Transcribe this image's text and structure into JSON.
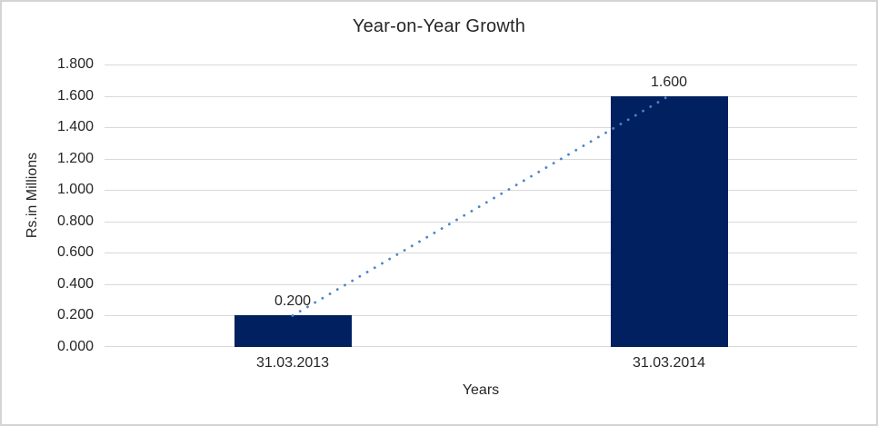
{
  "chart_data": {
    "type": "bar",
    "title": "Year-on-Year Growth",
    "categories": [
      "31.03.2013",
      "31.03.2014"
    ],
    "values": [
      0.2,
      1.6
    ],
    "data_labels": [
      "0.200",
      "1.600"
    ],
    "xlabel": "Years",
    "ylabel": "Rs.in Millions",
    "ylim": [
      0,
      1.8
    ],
    "ytick_step": 0.2,
    "yticks": [
      "1.800",
      "1.600",
      "1.400",
      "1.200",
      "1.000",
      "0.800",
      "0.600",
      "0.400",
      "0.200",
      "0.000"
    ],
    "grid": true,
    "legend": false,
    "bar_color": "#002060",
    "gridline_color": "#d9d9d9",
    "text_color": "#262626",
    "background_color": "#ffffff",
    "trendline": {
      "type": "linear",
      "style": "dotted",
      "color": "#4a86c8"
    }
  }
}
